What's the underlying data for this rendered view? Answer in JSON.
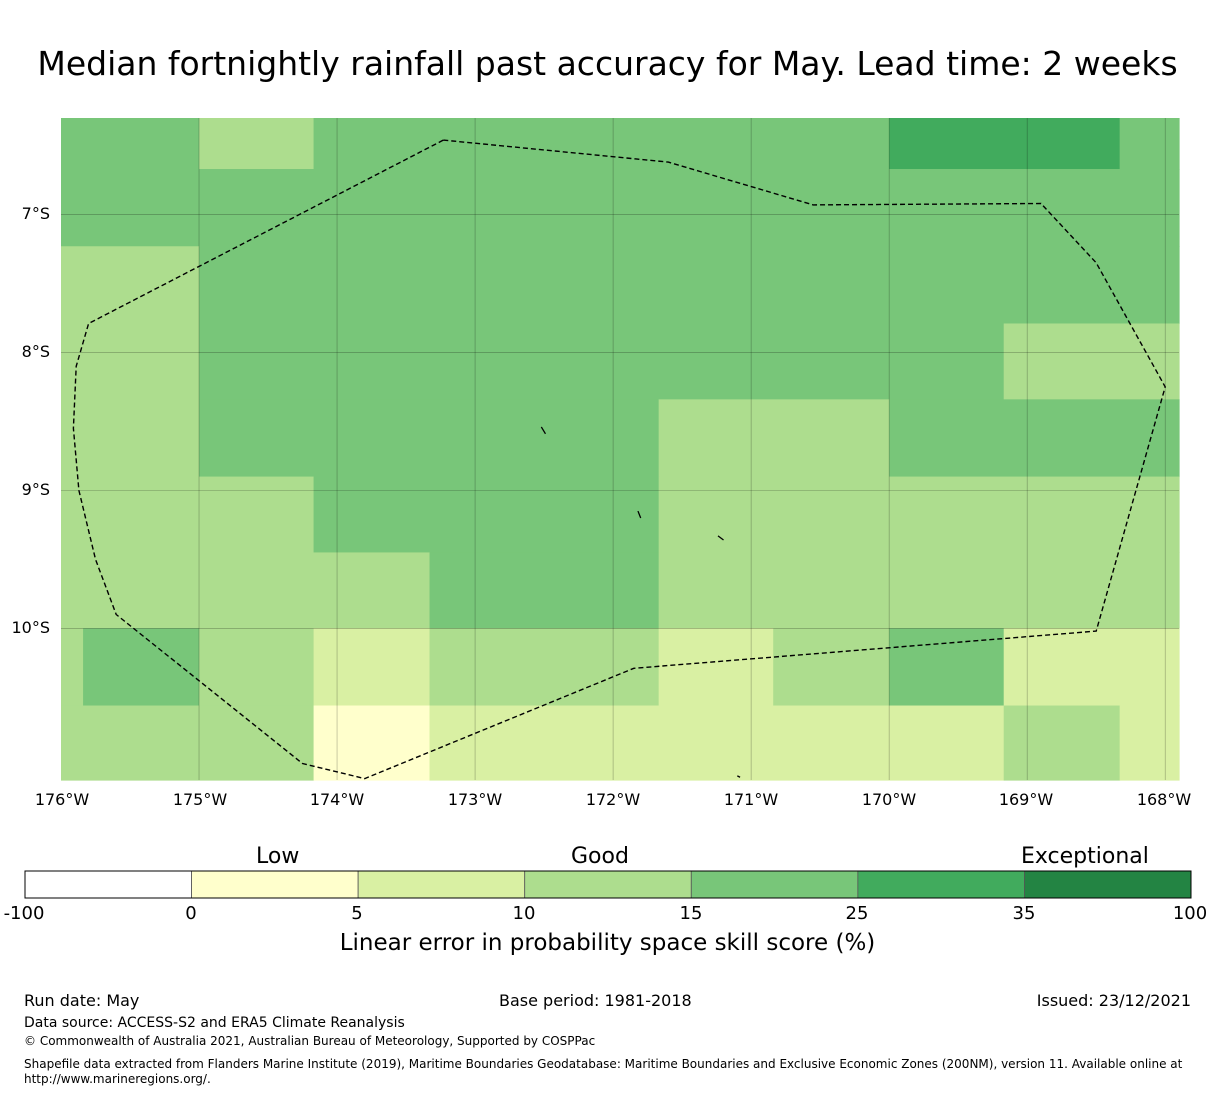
{
  "title": "Median fortnightly rainfall past accuracy for May. Lead time: 2 weeks",
  "map": {
    "lat_ticks": [
      "7°S",
      "8°S",
      "9°S",
      "10°S"
    ],
    "lon_ticks": [
      "176°W",
      "175°W",
      "174°W",
      "173°W",
      "172°W",
      "171°W",
      "170°W",
      "169°W",
      "168°W"
    ],
    "extent": {
      "lon_min": -176.0,
      "lon_max": -167.9,
      "lat_min": -11.1,
      "lat_max": -6.3
    },
    "gridlines": true,
    "boundary_style": "dashed",
    "cells": [
      {
        "lon": [
          -176.0,
          -175.0
        ],
        "lat": [
          -7.23,
          -6.3
        ],
        "cls": 4
      },
      {
        "lon": [
          -175.0,
          -174.17
        ],
        "lat": [
          -6.67,
          -6.3
        ],
        "cls": 3
      },
      {
        "lon": [
          -174.17,
          -170.0
        ],
        "lat": [
          -6.67,
          -6.3
        ],
        "cls": 4
      },
      {
        "lon": [
          -170.0,
          -168.33
        ],
        "lat": [
          -6.67,
          -6.3
        ],
        "cls": 5
      },
      {
        "lon": [
          -168.33,
          -167.9
        ],
        "lat": [
          -6.67,
          -6.3
        ],
        "cls": 4
      },
      {
        "lon": [
          -175.0,
          -167.9
        ],
        "lat": [
          -7.23,
          -6.67
        ],
        "cls": 4
      },
      {
        "lon": [
          -176.0,
          -175.0
        ],
        "lat": [
          -8.9,
          -7.23
        ],
        "cls": 3
      },
      {
        "lon": [
          -175.0,
          -167.9
        ],
        "lat": [
          -7.79,
          -7.23
        ],
        "cls": 4
      },
      {
        "lon": [
          -175.0,
          -169.17
        ],
        "lat": [
          -8.34,
          -7.79
        ],
        "cls": 4
      },
      {
        "lon": [
          -169.17,
          -167.9
        ],
        "lat": [
          -8.34,
          -7.79
        ],
        "cls": 3
      },
      {
        "lon": [
          -175.0,
          -171.67
        ],
        "lat": [
          -8.9,
          -8.34
        ],
        "cls": 4
      },
      {
        "lon": [
          -171.67,
          -170.0
        ],
        "lat": [
          -8.9,
          -8.34
        ],
        "cls": 3
      },
      {
        "lon": [
          -170.0,
          -167.9
        ],
        "lat": [
          -8.9,
          -8.34
        ],
        "cls": 4
      },
      {
        "lon": [
          -176.0,
          -174.17
        ],
        "lat": [
          -9.45,
          -8.9
        ],
        "cls": 3
      },
      {
        "lon": [
          -174.17,
          -171.67
        ],
        "lat": [
          -9.45,
          -8.9
        ],
        "cls": 4
      },
      {
        "lon": [
          -171.67,
          -167.9
        ],
        "lat": [
          -9.45,
          -8.9
        ],
        "cls": 3
      },
      {
        "lon": [
          -176.0,
          -173.33
        ],
        "lat": [
          -10.0,
          -9.45
        ],
        "cls": 3
      },
      {
        "lon": [
          -173.33,
          -171.67
        ],
        "lat": [
          -10.0,
          -9.45
        ],
        "cls": 4
      },
      {
        "lon": [
          -171.67,
          -167.9
        ],
        "lat": [
          -10.0,
          -9.45
        ],
        "cls": 3
      },
      {
        "lon": [
          -176.0,
          -175.84
        ],
        "lat": [
          -10.56,
          -10.0
        ],
        "cls": 3
      },
      {
        "lon": [
          -175.84,
          -175.0
        ],
        "lat": [
          -10.56,
          -10.0
        ],
        "cls": 4
      },
      {
        "lon": [
          -175.0,
          -174.17
        ],
        "lat": [
          -10.56,
          -10.0
        ],
        "cls": 3
      },
      {
        "lon": [
          -174.17,
          -173.33
        ],
        "lat": [
          -10.56,
          -10.0
        ],
        "cls": 2
      },
      {
        "lon": [
          -173.33,
          -171.67
        ],
        "lat": [
          -10.56,
          -10.0
        ],
        "cls": 3
      },
      {
        "lon": [
          -171.67,
          -170.84
        ],
        "lat": [
          -10.56,
          -10.0
        ],
        "cls": 2
      },
      {
        "lon": [
          -170.84,
          -170.0
        ],
        "lat": [
          -10.56,
          -10.0
        ],
        "cls": 3
      },
      {
        "lon": [
          -170.0,
          -169.17
        ],
        "lat": [
          -10.56,
          -10.0
        ],
        "cls": 4
      },
      {
        "lon": [
          -169.17,
          -167.9
        ],
        "lat": [
          -10.56,
          -10.0
        ],
        "cls": 2
      },
      {
        "lon": [
          -176.0,
          -174.17
        ],
        "lat": [
          -11.1,
          -10.56
        ],
        "cls": 3
      },
      {
        "lon": [
          -174.17,
          -173.33
        ],
        "lat": [
          -11.1,
          -10.56
        ],
        "cls": 1
      },
      {
        "lon": [
          -173.33,
          -169.17
        ],
        "lat": [
          -11.1,
          -10.56
        ],
        "cls": 2
      },
      {
        "lon": [
          -169.17,
          -168.33
        ],
        "lat": [
          -11.1,
          -10.56
        ],
        "cls": 3
      },
      {
        "lon": [
          -168.33,
          -167.9
        ],
        "lat": [
          -11.1,
          -10.56
        ],
        "cls": 2
      }
    ],
    "eez_boundary": [
      [
        -173.23,
        -6.46
      ],
      [
        -171.6,
        -6.62
      ],
      [
        -170.55,
        -6.93
      ],
      [
        -168.9,
        -6.92
      ],
      [
        -168.5,
        -7.35
      ],
      [
        -168.0,
        -8.25
      ],
      [
        -168.5,
        -10.02
      ],
      [
        -171.85,
        -10.29
      ],
      [
        -173.8,
        -11.09
      ],
      [
        -174.25,
        -10.98
      ],
      [
        -175.6,
        -9.9
      ],
      [
        -175.75,
        -9.5
      ],
      [
        -175.87,
        -9.0
      ],
      [
        -175.91,
        -8.55
      ],
      [
        -175.89,
        -8.1
      ],
      [
        -175.8,
        -7.79
      ],
      [
        -173.23,
        -6.46
      ]
    ],
    "islands": [
      [
        [
          -172.52,
          -8.54
        ],
        [
          -172.49,
          -8.59
        ]
      ],
      [
        [
          -171.82,
          -9.15
        ],
        [
          -171.8,
          -9.2
        ]
      ],
      [
        [
          -171.24,
          -9.33
        ],
        [
          -171.2,
          -9.36
        ]
      ],
      [
        [
          -171.1,
          -11.07
        ],
        [
          -171.08,
          -11.08
        ]
      ]
    ]
  },
  "colorbar": {
    "words": [
      "Low",
      "Good",
      "Exceptional"
    ],
    "ticks": [
      "-100",
      "0",
      "5",
      "10",
      "15",
      "25",
      "35",
      "100"
    ],
    "colors": [
      "#ffffff",
      "#ffffcc",
      "#d9f0a3",
      "#addd8e",
      "#78c679",
      "#41ab5d",
      "#238443"
    ],
    "label": "Linear error in probability space skill score (%)"
  },
  "footer": {
    "run_date": "Run date: May",
    "base_period": "Base period: 1981-2018",
    "issued": "Issued: 23/12/2021",
    "data_source": "Data source: ACCESS-S2 and ERA5 Climate Reanalysis",
    "copyright": "© Commonwealth of Australia 2021, Australian Bureau of Meteorology, Supported by COSPPac",
    "shapefile": "Shapefile data extracted from Flanders Marine Institute (2019), Maritime Boundaries Geodatabase: Maritime Boundaries and Exclusive Economic Zones (200NM), version 11. Available online at http://www.marineregions.org/."
  }
}
